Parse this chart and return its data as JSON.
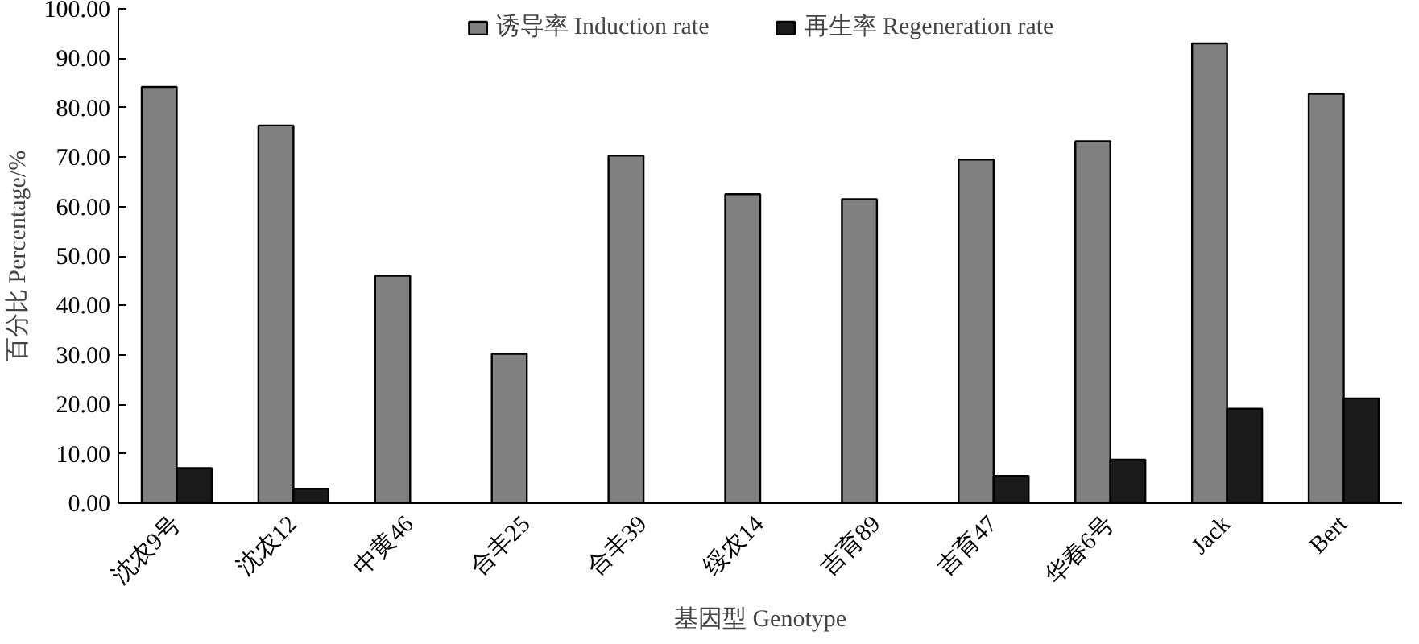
{
  "chart_data": {
    "type": "bar",
    "xlabel": "基因型 Genotype",
    "ylabel": "百分比 Percentage/%",
    "categories": [
      "沈农9号",
      "沈农12",
      "中黄46",
      "合丰25",
      "合丰39",
      "绥农14",
      "吉育89",
      "吉育47",
      "华春6号",
      "Jack",
      "Bert"
    ],
    "series": [
      {
        "name": "诱导率 Induction rate",
        "color": "#808080",
        "values": [
          84.2,
          76.4,
          46.0,
          30.2,
          70.3,
          62.5,
          61.5,
          69.5,
          73.2,
          93.0,
          82.8
        ]
      },
      {
        "name": "再生率 Regeneration rate",
        "color": "#1a1a1a",
        "values": [
          7.1,
          2.9,
          null,
          null,
          null,
          null,
          null,
          5.5,
          8.8,
          19.1,
          21.2
        ]
      }
    ],
    "ylim": [
      0,
      100
    ],
    "yticks": [
      {
        "value": 0,
        "label": "0.00"
      },
      {
        "value": 10,
        "label": "10.00"
      },
      {
        "value": 20,
        "label": "20.00"
      },
      {
        "value": 30,
        "label": "30.00"
      },
      {
        "value": 40,
        "label": "40.00"
      },
      {
        "value": 50,
        "label": "50.00"
      },
      {
        "value": 60,
        "label": "60.00"
      },
      {
        "value": 70,
        "label": "70.00"
      },
      {
        "value": 80,
        "label": "80.00"
      },
      {
        "value": 90,
        "label": "90.00"
      },
      {
        "value": 100,
        "label": "100.00"
      }
    ],
    "grid": false,
    "legend": "top"
  }
}
